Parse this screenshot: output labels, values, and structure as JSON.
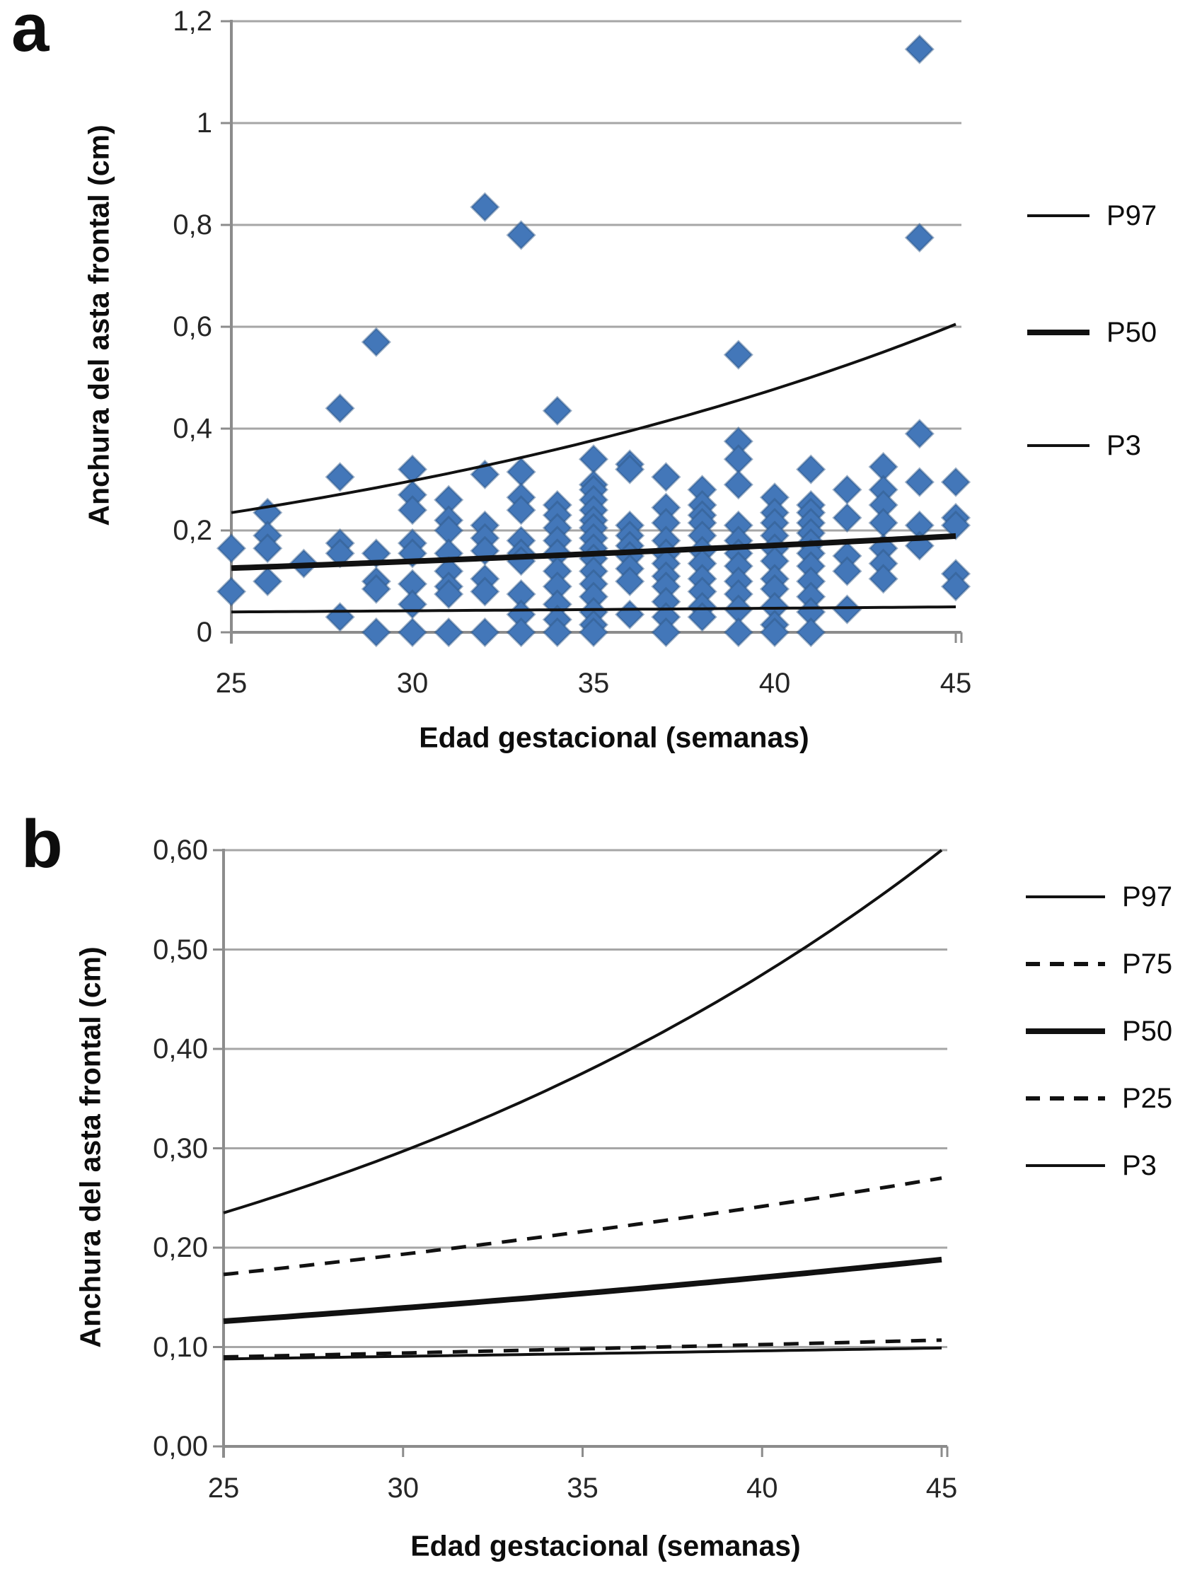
{
  "figure": {
    "background": "#ffffff"
  },
  "colors": {
    "marker_fill": "#4377b9",
    "marker_edge": "#2f5685",
    "curve": "#111111",
    "gridline": "#a6a6a6",
    "axis_line": "#8c8c8c",
    "text": "#1f1f1f"
  },
  "panel_a": {
    "letter": "a",
    "y_axis_title": "Anchura del asta frontal (cm)",
    "x_axis_title": "Edad gestacional (semanas)",
    "legend": [
      {
        "label": "P97",
        "style": "thin-solid"
      },
      {
        "label": "P50",
        "style": "thick-solid"
      },
      {
        "label": "P3",
        "style": "thin-solid"
      }
    ]
  },
  "panel_b": {
    "letter": "b",
    "y_axis_title": "Anchura del asta frontal (cm)",
    "x_axis_title": "Edad gestacional (semanas)",
    "legend": [
      {
        "label": "P97",
        "style": "thin-solid"
      },
      {
        "label": "P75",
        "style": "dashed"
      },
      {
        "label": "P50",
        "style": "thick-solid"
      },
      {
        "label": "P25",
        "style": "dashed"
      },
      {
        "label": "P3",
        "style": "thin-solid"
      }
    ]
  },
  "chart_data": [
    {
      "type": "scatter",
      "panel": "a",
      "xlabel": "Edad gestacional (semanas)",
      "ylabel": "Anchura del asta frontal (cm)",
      "xlim": [
        25,
        45
      ],
      "ylim": [
        0,
        1.2
      ],
      "x_ticks": [
        25,
        30,
        35,
        40,
        45
      ],
      "x_tick_labels": [
        "25",
        "30",
        "35",
        "40",
        "45"
      ],
      "y_ticks": [
        0,
        0.2,
        0.4,
        0.6,
        0.8,
        1,
        1.2
      ],
      "y_tick_labels": [
        "0",
        "0,2",
        "0,4",
        "0,6",
        "0,8",
        "1",
        "1,2"
      ],
      "grid": "horizontal",
      "legend_position": "right",
      "series": [
        {
          "name": "P97",
          "type": "line",
          "style": "solid",
          "weight": "thin",
          "interpolation": "exponential",
          "x": [
            25,
            45
          ],
          "y": [
            0.235,
            0.605
          ]
        },
        {
          "name": "P50",
          "type": "line",
          "style": "solid",
          "weight": "thick",
          "interpolation": "exponential",
          "x": [
            25,
            45
          ],
          "y": [
            0.126,
            0.189
          ]
        },
        {
          "name": "P3",
          "type": "line",
          "style": "solid",
          "weight": "thin",
          "interpolation": "exponential",
          "x": [
            25,
            45
          ],
          "y": [
            0.04,
            0.05
          ]
        }
      ],
      "scatter_points": [
        [
          25,
          0.165
        ],
        [
          25,
          0.08
        ],
        [
          26,
          0.235
        ],
        [
          26,
          0.19
        ],
        [
          26,
          0.165
        ],
        [
          26,
          0.1
        ],
        [
          27,
          0.135
        ],
        [
          28,
          0.44
        ],
        [
          28,
          0.305
        ],
        [
          28,
          0.175
        ],
        [
          28,
          0.155
        ],
        [
          28,
          0.03
        ],
        [
          29,
          0.57
        ],
        [
          29,
          0.155
        ],
        [
          29,
          0.1
        ],
        [
          29,
          0.085
        ],
        [
          29,
          0
        ],
        [
          30,
          0.32
        ],
        [
          30,
          0.27
        ],
        [
          30,
          0.24
        ],
        [
          30,
          0.175
        ],
        [
          30,
          0.155
        ],
        [
          30,
          0.095
        ],
        [
          30,
          0.055
        ],
        [
          30,
          0
        ],
        [
          31,
          0.26
        ],
        [
          31,
          0.22
        ],
        [
          31,
          0.2
        ],
        [
          31,
          0.155
        ],
        [
          31,
          0.12
        ],
        [
          31,
          0.09
        ],
        [
          31,
          0.075
        ],
        [
          31,
          0
        ],
        [
          32,
          0.835
        ],
        [
          32,
          0.31
        ],
        [
          32,
          0.21
        ],
        [
          32,
          0.185
        ],
        [
          32,
          0.16
        ],
        [
          32,
          0.105
        ],
        [
          32,
          0.08
        ],
        [
          32,
          0
        ],
        [
          33,
          0.78
        ],
        [
          33,
          0.315
        ],
        [
          33,
          0.265
        ],
        [
          33,
          0.24
        ],
        [
          33,
          0.18
        ],
        [
          33,
          0.155
        ],
        [
          33,
          0.14
        ],
        [
          33,
          0.075
        ],
        [
          33,
          0.035
        ],
        [
          33,
          0
        ],
        [
          34,
          0.435
        ],
        [
          34,
          0.25
        ],
        [
          34,
          0.23
        ],
        [
          34,
          0.205
        ],
        [
          34,
          0.18
        ],
        [
          34,
          0.155
        ],
        [
          34,
          0.12
        ],
        [
          34,
          0.09
        ],
        [
          34,
          0.055
        ],
        [
          34,
          0.025
        ],
        [
          34,
          0
        ],
        [
          35,
          0.34
        ],
        [
          35,
          0.29
        ],
        [
          35,
          0.28
        ],
        [
          35,
          0.26
        ],
        [
          35,
          0.24
        ],
        [
          35,
          0.22
        ],
        [
          35,
          0.205
        ],
        [
          35,
          0.185
        ],
        [
          35,
          0.165
        ],
        [
          35,
          0.145
        ],
        [
          35,
          0.12
        ],
        [
          35,
          0.095
        ],
        [
          35,
          0.07
        ],
        [
          35,
          0.04
        ],
        [
          35,
          0.015
        ],
        [
          35,
          0
        ],
        [
          36,
          0.33
        ],
        [
          36,
          0.32
        ],
        [
          36,
          0.21
        ],
        [
          36,
          0.19
        ],
        [
          36,
          0.17
        ],
        [
          36,
          0.15
        ],
        [
          36,
          0.125
        ],
        [
          36,
          0.1
        ],
        [
          36,
          0.035
        ],
        [
          37,
          0.305
        ],
        [
          37,
          0.245
        ],
        [
          37,
          0.215
        ],
        [
          37,
          0.18
        ],
        [
          37,
          0.155
        ],
        [
          37,
          0.135
        ],
        [
          37,
          0.11
        ],
        [
          37,
          0.09
        ],
        [
          37,
          0.06
        ],
        [
          37,
          0.03
        ],
        [
          37,
          0
        ],
        [
          38,
          0.28
        ],
        [
          38,
          0.25
        ],
        [
          38,
          0.23
        ],
        [
          38,
          0.215
        ],
        [
          38,
          0.19
        ],
        [
          38,
          0.16
        ],
        [
          38,
          0.135
        ],
        [
          38,
          0.105
        ],
        [
          38,
          0.08
        ],
        [
          38,
          0.05
        ],
        [
          38,
          0.03
        ],
        [
          39,
          0.545
        ],
        [
          39,
          0.375
        ],
        [
          39,
          0.34
        ],
        [
          39,
          0.29
        ],
        [
          39,
          0.21
        ],
        [
          39,
          0.18
        ],
        [
          39,
          0.155
        ],
        [
          39,
          0.13
        ],
        [
          39,
          0.1
        ],
        [
          39,
          0.075
        ],
        [
          39,
          0.045
        ],
        [
          39,
          0
        ],
        [
          40,
          0.265
        ],
        [
          40,
          0.235
        ],
        [
          40,
          0.215
        ],
        [
          40,
          0.19
        ],
        [
          40,
          0.165
        ],
        [
          40,
          0.14
        ],
        [
          40,
          0.105
        ],
        [
          40,
          0.085
        ],
        [
          40,
          0.05
        ],
        [
          40,
          0.015
        ],
        [
          40,
          0
        ],
        [
          41,
          0.32
        ],
        [
          41,
          0.25
        ],
        [
          41,
          0.235
        ],
        [
          41,
          0.215
        ],
        [
          41,
          0.195
        ],
        [
          41,
          0.175
        ],
        [
          41,
          0.155
        ],
        [
          41,
          0.13
        ],
        [
          41,
          0.1
        ],
        [
          41,
          0.07
        ],
        [
          41,
          0.04
        ],
        [
          41,
          0
        ],
        [
          42,
          0.28
        ],
        [
          42,
          0.225
        ],
        [
          42,
          0.15
        ],
        [
          42,
          0.12
        ],
        [
          42,
          0.045
        ],
        [
          43,
          0.325
        ],
        [
          43,
          0.28
        ],
        [
          43,
          0.25
        ],
        [
          43,
          0.215
        ],
        [
          43,
          0.165
        ],
        [
          43,
          0.135
        ],
        [
          43,
          0.105
        ],
        [
          44,
          1.145
        ],
        [
          44,
          0.775
        ],
        [
          44,
          0.39
        ],
        [
          44,
          0.295
        ],
        [
          44,
          0.21
        ],
        [
          44,
          0.17
        ],
        [
          45,
          0.295
        ],
        [
          45,
          0.225
        ],
        [
          45,
          0.21
        ],
        [
          45,
          0.115
        ],
        [
          45,
          0.09
        ]
      ]
    },
    {
      "type": "line",
      "panel": "b",
      "xlabel": "Edad gestacional (semanas)",
      "ylabel": "Anchura del asta frontal (cm)",
      "xlim": [
        25,
        45
      ],
      "ylim": [
        0,
        0.6
      ],
      "x_ticks": [
        25,
        30,
        35,
        40,
        45
      ],
      "x_tick_labels": [
        "25",
        "30",
        "35",
        "40",
        "45"
      ],
      "y_ticks": [
        0,
        0.1,
        0.2,
        0.3,
        0.4,
        0.5,
        0.6
      ],
      "y_tick_labels": [
        "0,00",
        "0,10",
        "0,20",
        "0,30",
        "0,40",
        "0,50",
        "0,60"
      ],
      "grid": "horizontal",
      "legend_position": "right",
      "series": [
        {
          "name": "P97",
          "type": "line",
          "style": "solid",
          "weight": "thin",
          "interpolation": "exponential",
          "x": [
            25,
            45
          ],
          "y": [
            0.235,
            0.6
          ]
        },
        {
          "name": "P75",
          "type": "line",
          "style": "dashed",
          "weight": "thin",
          "interpolation": "exponential",
          "x": [
            25,
            45
          ],
          "y": [
            0.173,
            0.27
          ]
        },
        {
          "name": "P50",
          "type": "line",
          "style": "solid",
          "weight": "thick",
          "interpolation": "exponential",
          "x": [
            25,
            45
          ],
          "y": [
            0.126,
            0.188
          ]
        },
        {
          "name": "P3",
          "type": "line",
          "style": "solid",
          "weight": "thin",
          "interpolation": "exponential",
          "x": [
            25,
            45
          ],
          "y": [
            0.088,
            0.099
          ]
        },
        {
          "name": "P25",
          "type": "line",
          "style": "dashed",
          "weight": "thin",
          "interpolation": "exponential",
          "x": [
            25,
            45
          ],
          "y": [
            0.09,
            0.107
          ]
        }
      ]
    }
  ]
}
